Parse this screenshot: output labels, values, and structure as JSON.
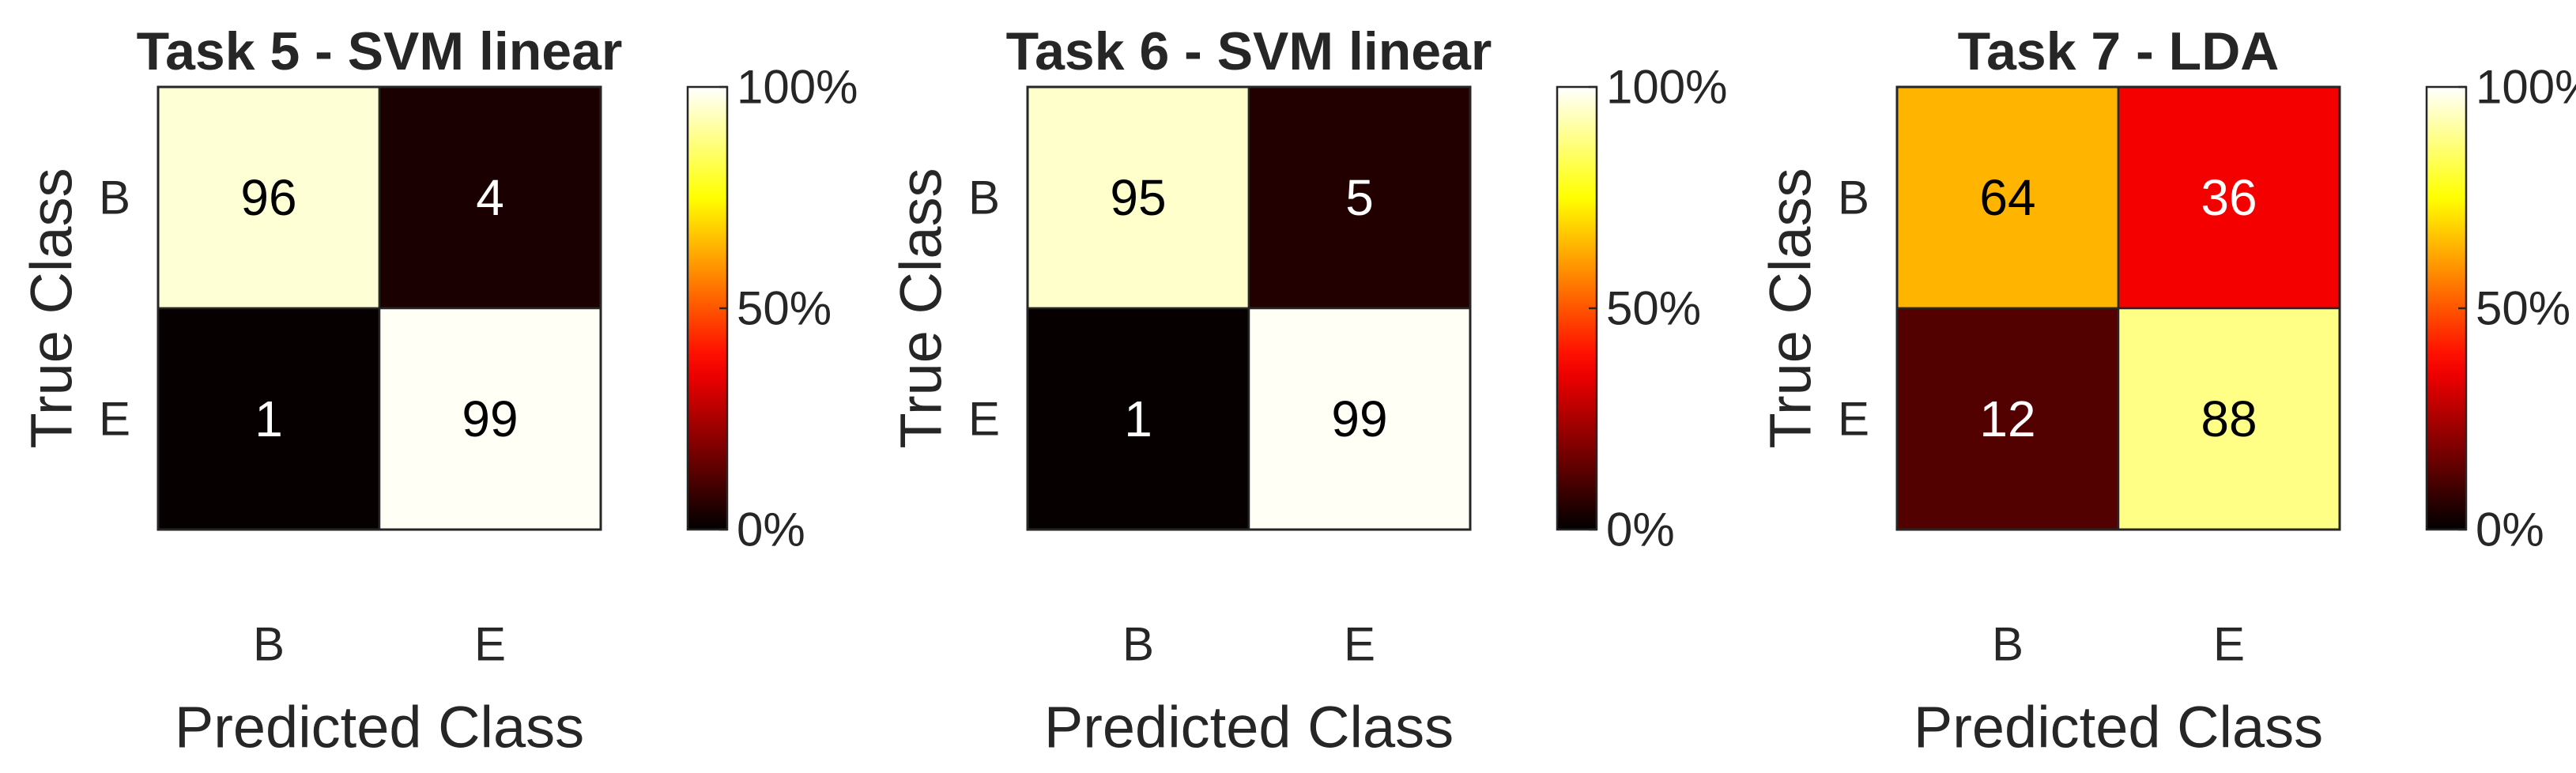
{
  "chart_data": [
    {
      "type": "heatmap",
      "title": "Task 5 - SVM linear",
      "xlabel": "Predicted Class",
      "ylabel": "True Class",
      "x_categories": [
        "B",
        "E"
      ],
      "y_categories": [
        "B",
        "E"
      ],
      "values": [
        [
          96,
          4
        ],
        [
          1,
          99
        ]
      ],
      "colorbar": {
        "min": 0,
        "max": 100,
        "ticks": [
          "0%",
          "50%",
          "100%"
        ],
        "colormap": "hot"
      }
    },
    {
      "type": "heatmap",
      "title": "Task 6 - SVM linear",
      "xlabel": "Predicted Class",
      "ylabel": "True Class",
      "x_categories": [
        "B",
        "E"
      ],
      "y_categories": [
        "B",
        "E"
      ],
      "values": [
        [
          95,
          5
        ],
        [
          1,
          99
        ]
      ],
      "colorbar": {
        "min": 0,
        "max": 100,
        "ticks": [
          "0%",
          "50%",
          "100%"
        ],
        "colormap": "hot"
      }
    },
    {
      "type": "heatmap",
      "title": "Task 7 - LDA",
      "xlabel": "Predicted Class",
      "ylabel": "True Class",
      "x_categories": [
        "B",
        "E"
      ],
      "y_categories": [
        "B",
        "E"
      ],
      "values": [
        [
          64,
          36
        ],
        [
          12,
          88
        ]
      ],
      "colorbar": {
        "min": 0,
        "max": 100,
        "ticks": [
          "0%",
          "50%",
          "100%"
        ],
        "colormap": "hot"
      }
    }
  ]
}
